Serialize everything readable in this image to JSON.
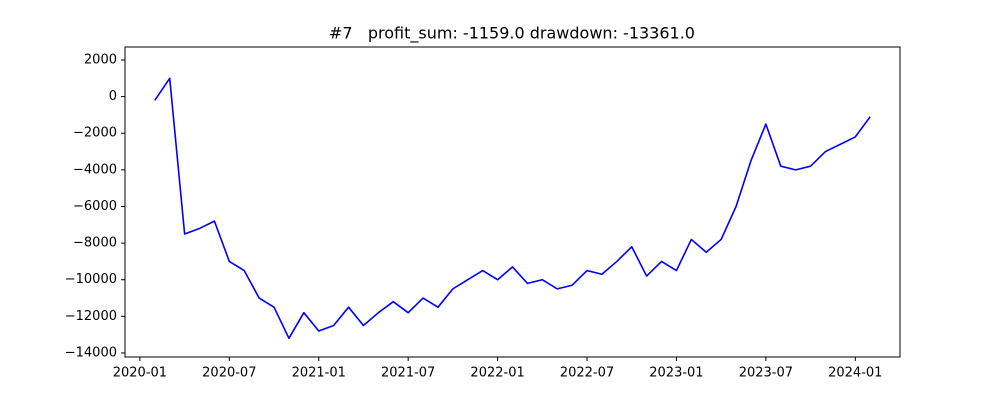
{
  "chart_data": {
    "type": "line",
    "title": "#7   profit_sum: -1159.0 drawdown: -13361.0",
    "x": [
      "2020-02",
      "2020-03",
      "2020-04",
      "2020-05",
      "2020-06",
      "2020-07",
      "2020-08",
      "2020-09",
      "2020-10",
      "2020-11",
      "2020-12",
      "2021-01",
      "2021-02",
      "2021-03",
      "2021-04",
      "2021-05",
      "2021-06",
      "2021-07",
      "2021-08",
      "2021-09",
      "2021-10",
      "2021-11",
      "2021-12",
      "2022-01",
      "2022-02",
      "2022-03",
      "2022-04",
      "2022-05",
      "2022-06",
      "2022-07",
      "2022-08",
      "2022-09",
      "2022-10",
      "2022-11",
      "2022-12",
      "2023-01",
      "2023-02",
      "2023-03",
      "2023-04",
      "2023-05",
      "2023-06",
      "2023-07",
      "2023-08",
      "2023-09",
      "2023-10",
      "2023-11",
      "2023-12",
      "2024-01",
      "2024-02"
    ],
    "series": [
      {
        "color": "#0000ff",
        "values": [
          -200,
          1000,
          -7500,
          -7200,
          -6800,
          -9000,
          -9500,
          -11000,
          -11500,
          -13200,
          -11800,
          -12800,
          -12500,
          -11500,
          -12500,
          -11800,
          -11200,
          -11800,
          -11000,
          -11500,
          -10500,
          -10000,
          -9500,
          -10000,
          -9300,
          -10200,
          -10000,
          -10500,
          -10300,
          -9500,
          -9700,
          -9000,
          -8200,
          -9800,
          -9000,
          -9500,
          -7800,
          -8500,
          -7800,
          -6000,
          -3500,
          -1500,
          -3800,
          -4000,
          -3800,
          -3000,
          -2600,
          -2200,
          -1100
        ]
      }
    ],
    "xlim": [
      "2019-12",
      "2024-04"
    ],
    "xticks": [
      "2020-01",
      "2020-07",
      "2021-01",
      "2021-07",
      "2022-01",
      "2022-07",
      "2023-01",
      "2023-07",
      "2024-01"
    ],
    "ylim": [
      -14220,
      2710
    ],
    "yticks": [
      2000,
      0,
      {
        "value": -2000,
        "label": "−2000"
      },
      {
        "value": -4000,
        "label": "−4000"
      },
      {
        "value": -6000,
        "label": "−6000"
      },
      {
        "value": -8000,
        "label": "−8000"
      },
      {
        "value": -10000,
        "label": "−10000"
      },
      {
        "value": -12000,
        "label": "−12000"
      },
      {
        "value": -14000,
        "label": "−14000"
      }
    ],
    "grid": false
  }
}
